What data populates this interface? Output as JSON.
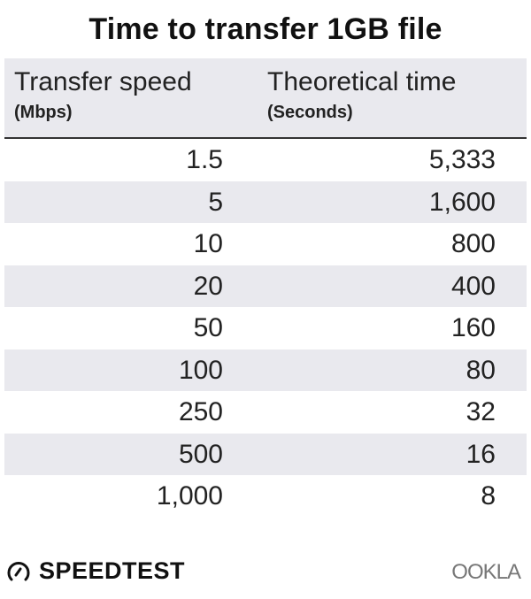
{
  "title": "Time to transfer 1GB file",
  "chart_data": {
    "type": "table",
    "title": "Time to transfer 1GB file",
    "columns": [
      {
        "label": "Transfer speed",
        "unit": "(Mbps)"
      },
      {
        "label": "Theoretical time",
        "unit": "(Seconds)"
      }
    ],
    "rows": [
      [
        "1.5",
        "5,333"
      ],
      [
        "5",
        "1,600"
      ],
      [
        "10",
        "800"
      ],
      [
        "20",
        "400"
      ],
      [
        "50",
        "160"
      ],
      [
        "100",
        "80"
      ],
      [
        "250",
        "32"
      ],
      [
        "500",
        "16"
      ],
      [
        "1,000",
        "8"
      ]
    ]
  },
  "footer": {
    "speedtest_logo": "SPEEDTEST",
    "ookla_logo": "OOKLA"
  },
  "colors": {
    "header_bg": "#e9e9ee",
    "stripe_bg": "#e9e9ee",
    "rule": "#333333"
  }
}
